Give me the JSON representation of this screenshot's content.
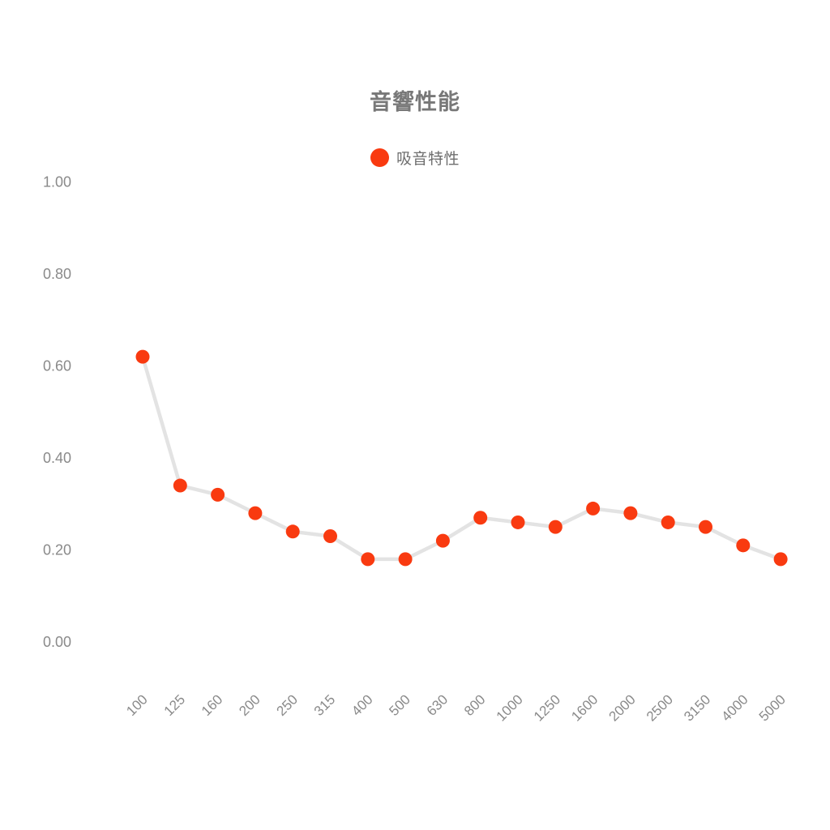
{
  "chart_data": {
    "type": "line",
    "title": "音響性能",
    "xlabel": "",
    "ylabel": "",
    "grid": false,
    "legend_position": "top-center",
    "categories": [
      "100",
      "125",
      "160",
      "200",
      "250",
      "315",
      "400",
      "500",
      "630",
      "800",
      "1000",
      "1250",
      "1600",
      "2000",
      "2500",
      "3150",
      "4000",
      "5000"
    ],
    "series": [
      {
        "name": "吸音特性",
        "color": "#f93a10",
        "values": [
          0.62,
          0.34,
          0.32,
          0.28,
          0.24,
          0.23,
          0.18,
          0.18,
          0.22,
          0.27,
          0.26,
          0.25,
          0.29,
          0.28,
          0.26,
          0.25,
          0.21,
          0.18
        ]
      }
    ],
    "ylim": [
      0,
      1
    ],
    "y_ticks": [
      {
        "label": "0.00",
        "value": 0.0
      },
      {
        "label": "0.20",
        "value": 0.2
      },
      {
        "label": "0.40",
        "value": 0.4
      },
      {
        "label": "0.60",
        "value": 0.6
      },
      {
        "label": "0.80",
        "value": 0.8
      },
      {
        "label": "1.00",
        "value": 1.0
      }
    ],
    "x_label_rotation_deg": -45,
    "line_color": "#e3e3e3",
    "text_colors": {
      "title": "#787878",
      "legend": "#6e6e6e",
      "axis": "#8a8a8a"
    }
  }
}
